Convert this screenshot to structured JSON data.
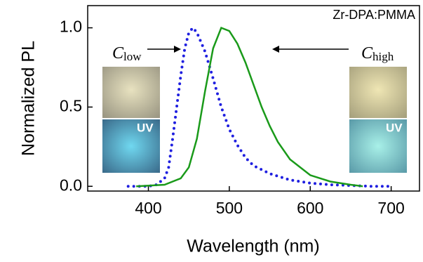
{
  "chart_data": {
    "type": "line",
    "xlabel": "Wavelength (nm)",
    "ylabel": "Normalized PL",
    "xlim": [
      325,
      735
    ],
    "ylim": [
      -0.03,
      1.14
    ],
    "xticks": [
      400,
      500,
      600,
      700
    ],
    "yticks": [
      {
        "value": 0,
        "label": "0.0"
      },
      {
        "value": 0.5,
        "label": "0.5"
      },
      {
        "value": 1,
        "label": "1.0"
      }
    ],
    "annotations": [
      {
        "text": "Zr-DPA:PMMA"
      },
      {
        "text": "C",
        "subscript": "low"
      },
      {
        "text": "C",
        "subscript": "high"
      },
      {
        "text": "UV"
      },
      {
        "text": "UV"
      }
    ],
    "series": [
      {
        "color": "#1f1fe0",
        "style": "dotted",
        "x": [
          375,
          400,
          410,
          420,
          425,
          430,
          435,
          440,
          445,
          450,
          455,
          460,
          470,
          480,
          490,
          500,
          510,
          520,
          530,
          550,
          575,
          600,
          625,
          650,
          675,
          700
        ],
        "values": [
          0,
          0,
          0.01,
          0.05,
          0.12,
          0.3,
          0.5,
          0.7,
          0.87,
          0.97,
          1.0,
          0.97,
          0.85,
          0.68,
          0.5,
          0.36,
          0.26,
          0.18,
          0.13,
          0.08,
          0.04,
          0.02,
          0.01,
          0.005,
          0,
          0
        ]
      },
      {
        "color": "#1a9a1a",
        "style": "solid",
        "x": [
          385,
          420,
          440,
          450,
          460,
          470,
          480,
          490,
          500,
          510,
          520,
          530,
          540,
          550,
          560,
          575,
          600,
          625,
          650,
          665
        ],
        "values": [
          0,
          0.01,
          0.05,
          0.12,
          0.3,
          0.6,
          0.87,
          1.0,
          0.98,
          0.9,
          0.78,
          0.64,
          0.5,
          0.38,
          0.28,
          0.17,
          0.07,
          0.03,
          0.01,
          0
        ]
      }
    ]
  }
}
